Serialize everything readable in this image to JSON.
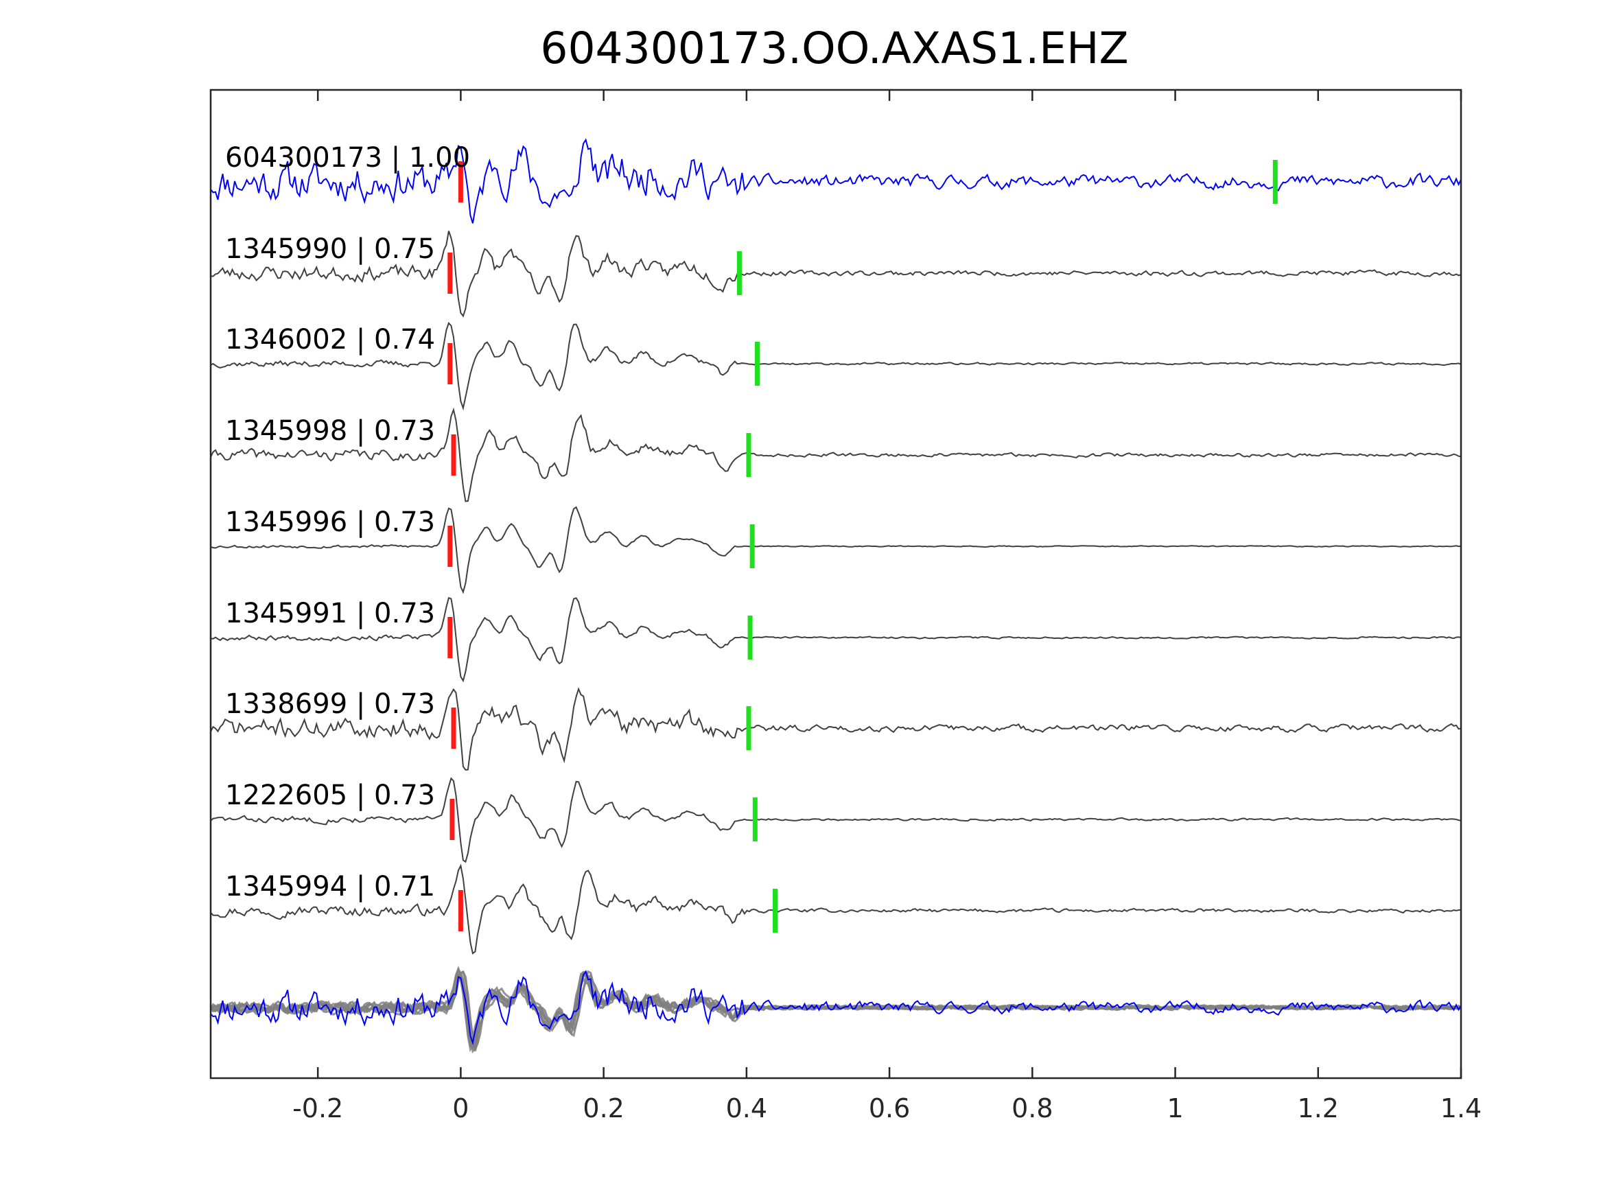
{
  "chart_data": {
    "type": "line",
    "title": "604300173.OO.AXAS1.EHZ",
    "xlabel": "",
    "ylabel": "",
    "xlim": [
      -0.35,
      1.4
    ],
    "xticks": [
      -0.2,
      0,
      0.2,
      0.4,
      0.6,
      0.8,
      1,
      1.2,
      1.4
    ],
    "xtick_labels": [
      "-0.2",
      "0",
      "0.2",
      "0.4",
      "0.6",
      "0.8",
      "1",
      "1.2",
      "1.4"
    ],
    "grid": false,
    "colors": {
      "master": "#0000ff",
      "trace": "#404040",
      "stack": "#808080",
      "p_pick": "#ff1a1a",
      "s_pick": "#1ee01e"
    },
    "traces": [
      {
        "label": "604300173 | 1.00",
        "p_pick": 0.0,
        "s_pick": 1.14,
        "master": true,
        "seed": 11
      },
      {
        "label": "1345990 | 0.75",
        "p_pick": -0.015,
        "s_pick": 0.39,
        "seed": 23
      },
      {
        "label": "1346002 | 0.74",
        "p_pick": -0.015,
        "s_pick": 0.415,
        "seed": 37
      },
      {
        "label": "1345998 | 0.73",
        "p_pick": -0.01,
        "s_pick": 0.403,
        "seed": 41
      },
      {
        "label": "1345996 | 0.73",
        "p_pick": -0.015,
        "s_pick": 0.408,
        "seed": 53
      },
      {
        "label": "1345991 | 0.73",
        "p_pick": -0.015,
        "s_pick": 0.405,
        "seed": 67
      },
      {
        "label": "1338699 | 0.73",
        "p_pick": -0.01,
        "s_pick": 0.403,
        "seed": 71
      },
      {
        "label": "1222605 | 0.73",
        "p_pick": -0.012,
        "s_pick": 0.412,
        "seed": 83
      },
      {
        "label": "1345994 | 0.71",
        "p_pick": 0.0,
        "s_pick": 0.44,
        "seed": 97
      }
    ],
    "stack": {
      "label": "",
      "overlay_count": 8
    }
  }
}
